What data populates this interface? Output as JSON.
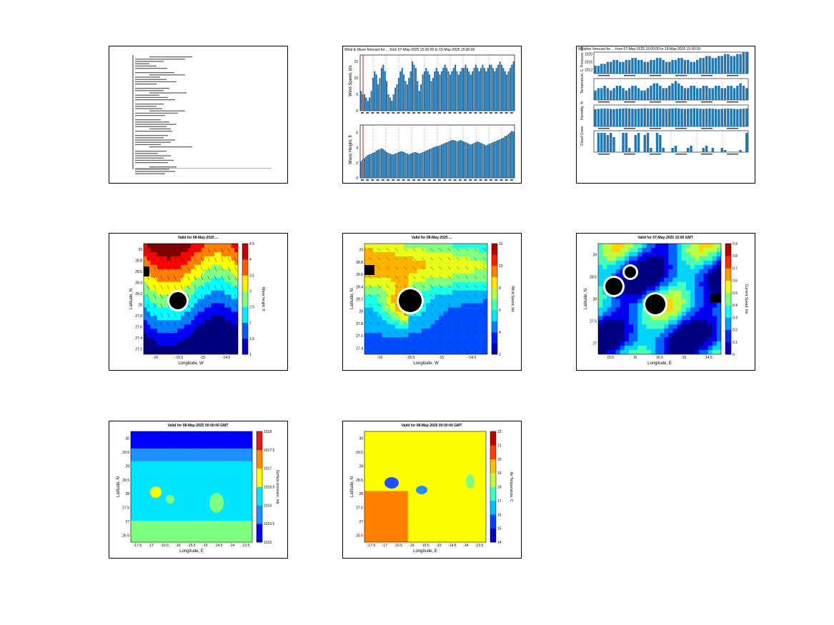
{
  "colors": {
    "bar": "#1f77b4",
    "red": "#e31a1c",
    "jetLow": "#0000cc",
    "jetHigh": "#cc0000"
  },
  "chart_data": [
    {
      "type": "table",
      "panel": "text-summary"
    },
    {
      "type": "bar",
      "panel": "wind-wave",
      "title": "Wind & Wave forecast for ... from 07-May-2025 15:00:00 to 19-May-2025 15:00:00",
      "subplots": [
        {
          "ylabel": "Wind Speed, kts",
          "ylim": [
            0,
            17
          ],
          "yticks": [
            "0",
            "5",
            "10",
            "15"
          ],
          "values": [
            6,
            5,
            5,
            4,
            3,
            4,
            6,
            10,
            12,
            11,
            8,
            10,
            13,
            14,
            12,
            9,
            5,
            4,
            3,
            5,
            7,
            8,
            10,
            12,
            13,
            11,
            9,
            8,
            10,
            12,
            15,
            14,
            13,
            9,
            6,
            8,
            11,
            12,
            13,
            12,
            11,
            9,
            10,
            12,
            13,
            12,
            11,
            12,
            13,
            14,
            13,
            12,
            11,
            12,
            13,
            14,
            12,
            11,
            12,
            13,
            13,
            14,
            13,
            12,
            11,
            12,
            13,
            14,
            13,
            12,
            13,
            14,
            13,
            12,
            13,
            14,
            14,
            13,
            12,
            13,
            14,
            15,
            14,
            13,
            12,
            11,
            12,
            13,
            14,
            15
          ]
        },
        {
          "ylabel": "Wave Height, ft",
          "ylim": [
            0,
            7
          ],
          "yticks": [
            "0",
            "2",
            "4",
            "6"
          ],
          "values": [
            2.2,
            2.4,
            2.6,
            2.8,
            3.0,
            3.1,
            3.2,
            3.3,
            3.4,
            3.6,
            3.7,
            3.8,
            3.9,
            3.8,
            3.6,
            3.4,
            3.3,
            3.2,
            3.1,
            3.1,
            3.2,
            3.3,
            3.4,
            3.5,
            3.5,
            3.4,
            3.3,
            3.2,
            3.1,
            3.2,
            3.3,
            3.4,
            3.4,
            3.3,
            3.2,
            3.3,
            3.4,
            3.5,
            3.6,
            3.7,
            3.8,
            3.9,
            4.0,
            4.1,
            4.2,
            4.2,
            4.3,
            4.4,
            4.5,
            4.6,
            4.7,
            4.8,
            4.9,
            5.0,
            5.0,
            4.9,
            4.8,
            4.9,
            5.0,
            4.9,
            4.8,
            4.7,
            4.6,
            4.5,
            4.4,
            4.5,
            4.6,
            4.7,
            4.8,
            4.7,
            4.6,
            4.5,
            4.4,
            4.3,
            4.4,
            4.5,
            4.6,
            4.7,
            4.8,
            4.9,
            5.0,
            5.1,
            5.2,
            5.3,
            5.5,
            5.6,
            5.8,
            6.0,
            6.2,
            6.1
          ]
        }
      ]
    },
    {
      "type": "bar",
      "panel": "weather-forecast",
      "title": "Weather forecast for ... from 07-May-2025 15:00:00 to 19-May-2025 15:00:00",
      "subplots": [
        {
          "ylabel": "Pressure, mbar",
          "yticks": [
            "1012",
            "1016",
            "1020"
          ],
          "values": [
            1014,
            1014,
            1015,
            1015,
            1016,
            1016,
            1017,
            1017,
            1016,
            1016,
            1017,
            1017,
            1018,
            1018,
            1017,
            1017,
            1016,
            1016,
            1017,
            1017,
            1018,
            1018,
            1017,
            1016,
            1016,
            1017,
            1017,
            1018,
            1018,
            1017,
            1017,
            1016,
            1016,
            1017,
            1018,
            1018,
            1019,
            1019,
            1018,
            1018,
            1019,
            1019,
            1020,
            1020,
            1019,
            1019,
            1020,
            1020,
            1021,
            1021
          ]
        },
        {
          "ylabel": "Temperature, C",
          "values": [
            19,
            20,
            20,
            21,
            20,
            19,
            20,
            21,
            21,
            20,
            19,
            20,
            21,
            21,
            20,
            19,
            19,
            20,
            21,
            22,
            22,
            21,
            20,
            20,
            21,
            22,
            23,
            22,
            21,
            20,
            20,
            21,
            21,
            20,
            20,
            21,
            21,
            20,
            20,
            21,
            21,
            20,
            20,
            21,
            21,
            20,
            21,
            22,
            21,
            20
          ]
        },
        {
          "ylabel": "Humidity, %",
          "values": [
            80,
            82,
            83,
            84,
            83,
            82,
            81,
            82,
            83,
            84,
            85,
            84,
            83,
            82,
            83,
            84,
            85,
            84,
            83,
            84,
            85,
            84,
            83,
            82,
            83,
            84,
            85,
            84,
            83,
            82,
            83,
            84,
            85,
            84,
            83,
            82,
            83,
            84,
            83,
            82,
            81,
            82,
            83,
            84,
            83,
            82,
            81,
            82,
            83,
            84
          ]
        },
        {
          "ylabel": "Cloud Cover",
          "values": [
            0,
            90,
            90,
            90,
            80,
            90,
            70,
            0,
            0,
            90,
            90,
            20,
            0,
            80,
            90,
            0,
            80,
            90,
            20,
            0,
            90,
            80,
            20,
            0,
            0,
            20,
            30,
            0,
            0,
            0,
            20,
            30,
            0,
            0,
            0,
            20,
            30,
            0,
            20,
            0,
            0,
            20,
            10,
            0,
            0,
            0,
            0,
            10,
            0,
            90
          ]
        }
      ]
    },
    {
      "type": "heatmap",
      "panel": "wave-map",
      "title": "Valid for 08-May-2025 ...",
      "xlabel": "Longitude, W",
      "ylabel": "Latitude, N",
      "xticks": [
        "-16",
        "-15.5",
        "-15",
        "-14.5"
      ],
      "yticks": [
        "27.2",
        "27.4",
        "27.6",
        "27.8",
        "28",
        "28.2",
        "28.4",
        "28.6",
        "28.8",
        "29"
      ],
      "colorbar": {
        "label": "Wave height, ft",
        "ticks": [
          "1",
          "1.5",
          "2",
          "2.5",
          "3",
          "3.5",
          "4",
          "4.5"
        ]
      }
    },
    {
      "type": "heatmap",
      "panel": "wind-map",
      "title": "Valid for 08-May-2025 ...",
      "xlabel": "Longitude, W",
      "ylabel": "Latitude, N",
      "xticks": [
        "-16",
        "-15.5",
        "-15",
        "-14.5"
      ],
      "yticks": [
        "27.4",
        "27.6",
        "27.8",
        "28",
        "28.2",
        "28.4",
        "28.6",
        "28.8",
        "29"
      ],
      "colorbar": {
        "label": "Wind Speed, kts",
        "ticks": [
          "2",
          "4",
          "6",
          "8",
          "10",
          "12"
        ]
      }
    },
    {
      "type": "heatmap",
      "panel": "current-map",
      "title": "Valid for 07-May-2025 15:00 GMT",
      "xlabel": "Longitude, E",
      "ylabel": "Latitude, N",
      "xticks": [
        "15.5",
        "16",
        "16.5",
        "15",
        "14.5"
      ],
      "yticks": [
        "27",
        "27.5",
        "28",
        "28.5",
        "29"
      ],
      "colorbar": {
        "label": "Current Speed, kts",
        "ticks": [
          "0",
          "0.1",
          "0.2",
          "0.3",
          "0.4",
          "0.5",
          "0.6",
          "0.7",
          "0.8",
          "0.9"
        ]
      }
    },
    {
      "type": "heatmap",
      "panel": "pressure-map",
      "title": "Valid for 08-May-2025 00:00:00 GMT",
      "xlabel": "Longitude, E",
      "ylabel": "Latitude, N",
      "xticks": [
        "-17.5",
        "-17",
        "-16.5",
        "-16",
        "-15.5",
        "-15",
        "-14.5",
        "-14",
        "-13.5"
      ],
      "yticks": [
        "26.5",
        "27",
        "27.5",
        "28",
        "28.5",
        "29",
        "29.5",
        "30"
      ],
      "colorbar": {
        "label": "Surface pressure, mb",
        "ticks": [
          "1015",
          "1015.5",
          "1016",
          "1016.5",
          "1017",
          "1017.5",
          "1018"
        ]
      }
    },
    {
      "type": "heatmap",
      "panel": "temperature-map",
      "title": "Valid for 08-May-2025 00:00:00 GMT",
      "xlabel": "Longitude, E",
      "ylabel": "Latitude, N",
      "xticks": [
        "-17.5",
        "-17",
        "-16.5",
        "-16",
        "-15.5",
        "-15",
        "-14.5",
        "-14",
        "-13.5"
      ],
      "yticks": [
        "26.5",
        "27",
        "27.5",
        "28",
        "28.5",
        "29",
        "29.5",
        "30"
      ],
      "colorbar": {
        "label": "Air Temperature, C",
        "ticks": [
          "14",
          "15",
          "16",
          "17",
          "18",
          "19",
          "20",
          "21",
          "22"
        ]
      }
    }
  ]
}
